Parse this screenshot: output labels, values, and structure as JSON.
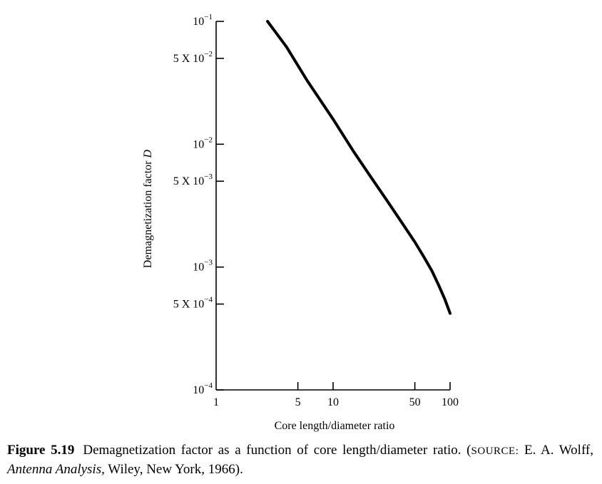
{
  "chart_data": {
    "type": "line",
    "xlabel": "Core length/diameter ratio",
    "ylabel": "Demagnetization factor",
    "ylabel_symbol": "D",
    "x_scale": "log",
    "y_scale": "log",
    "xlim": [
      1,
      100
    ],
    "ylim": [
      0.0001,
      0.1
    ],
    "grid": false,
    "x_ticks": [
      {
        "value": 1,
        "label": "1"
      },
      {
        "value": 5,
        "label": "5"
      },
      {
        "value": 10,
        "label": "10"
      },
      {
        "value": 50,
        "label": "50"
      },
      {
        "value": 100,
        "label": "100"
      }
    ],
    "y_ticks": [
      {
        "value": 0.1,
        "base": "10",
        "exp": "−1"
      },
      {
        "value": 0.05,
        "base": "5 X 10",
        "exp": "−2"
      },
      {
        "value": 0.01,
        "base": "10",
        "exp": "−2"
      },
      {
        "value": 0.005,
        "base": "5 X 10",
        "exp": "−3"
      },
      {
        "value": 0.001,
        "base": "10",
        "exp": "−3"
      },
      {
        "value": 0.0005,
        "base": "5 X 10",
        "exp": "−4"
      },
      {
        "value": 0.0001,
        "base": "10",
        "exp": "−4"
      }
    ],
    "series": [
      {
        "x": [
          2.75,
          4,
          6,
          10,
          15,
          20,
          30,
          40,
          50,
          60,
          70,
          80,
          90,
          100
        ],
        "y": [
          0.1,
          0.062,
          0.033,
          0.016,
          0.0087,
          0.0058,
          0.0033,
          0.0022,
          0.0016,
          0.0012,
          0.00093,
          0.00071,
          0.00055,
          0.00042
        ]
      }
    ]
  },
  "caption": {
    "figure_number": "Figure 5.19",
    "text_before_source": "Demagnetization factor as a function of core length/diameter ratio. (",
    "source_label": "SOURCE:",
    "text_author": " E. A. Wolff, ",
    "book_title": "Antenna Analysis",
    "text_after_title": ", Wiley, New York, 1966)."
  }
}
